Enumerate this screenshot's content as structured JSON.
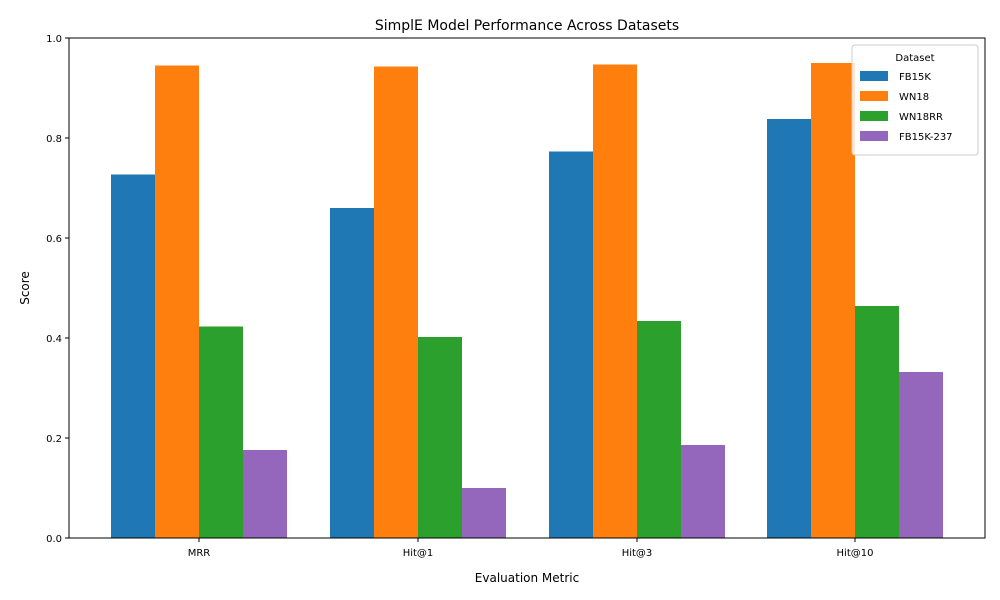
{
  "chart_data": {
    "type": "bar",
    "title": "SimplE Model Performance Across Datasets",
    "xlabel": "Evaluation Metric",
    "ylabel": "Score",
    "categories": [
      "MRR",
      "Hit@1",
      "Hit@3",
      "Hit@10"
    ],
    "series": [
      {
        "name": "FB15K",
        "color": "#1f77b4",
        "values": [
          0.727,
          0.66,
          0.773,
          0.838
        ]
      },
      {
        "name": "WN18",
        "color": "#ff7f0e",
        "values": [
          0.945,
          0.943,
          0.947,
          0.95
        ]
      },
      {
        "name": "WN18RR",
        "color": "#2ca02c",
        "values": [
          0.423,
          0.402,
          0.434,
          0.464
        ]
      },
      {
        "name": "FB15K-237",
        "color": "#9467bd",
        "values": [
          0.176,
          0.1,
          0.186,
          0.332
        ]
      }
    ],
    "ylim": [
      0,
      1.0
    ],
    "yticks": [
      "0.0",
      "0.2",
      "0.4",
      "0.6",
      "0.8",
      "1.0"
    ],
    "legend": {
      "title": "Dataset",
      "position": "top-right"
    },
    "grid": false
  }
}
